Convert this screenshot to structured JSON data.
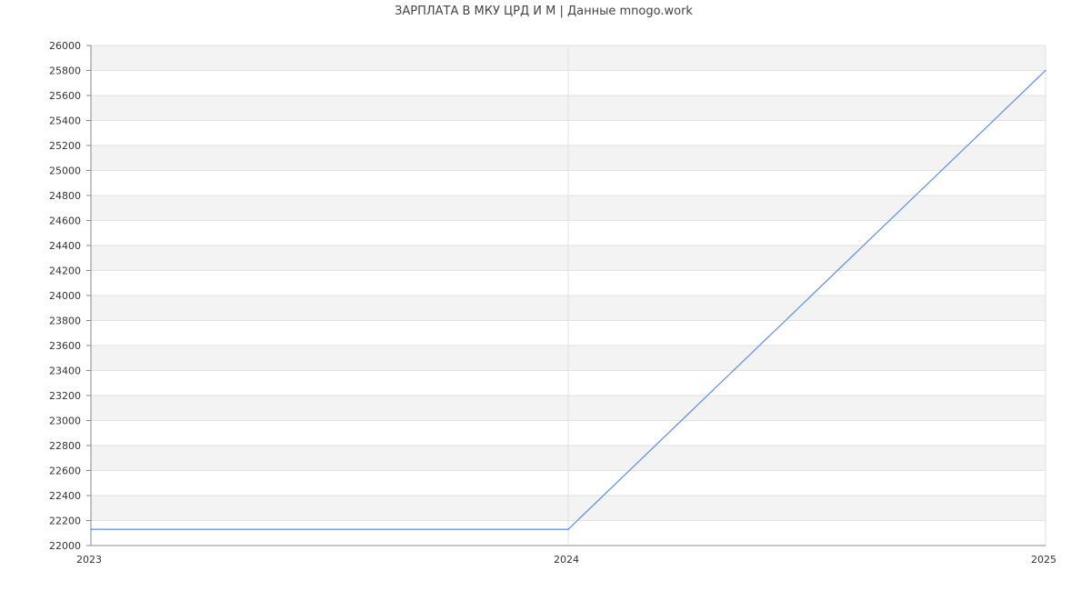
{
  "chart_data": {
    "type": "line",
    "title": "ЗАРПЛАТА В МКУ ЦРД И М | Данные mnogo.work",
    "xlabel": "",
    "ylabel": "",
    "x": [
      "2023",
      "2024",
      "2025"
    ],
    "series": [
      {
        "values": [
          22130,
          22130,
          25800
        ],
        "color": "#5b8def"
      }
    ],
    "ylim": [
      22000,
      26000
    ],
    "ytick_step": 200,
    "grid": true,
    "band_colors": [
      "#f3f3f3",
      "#ffffff"
    ],
    "legend": "none"
  }
}
